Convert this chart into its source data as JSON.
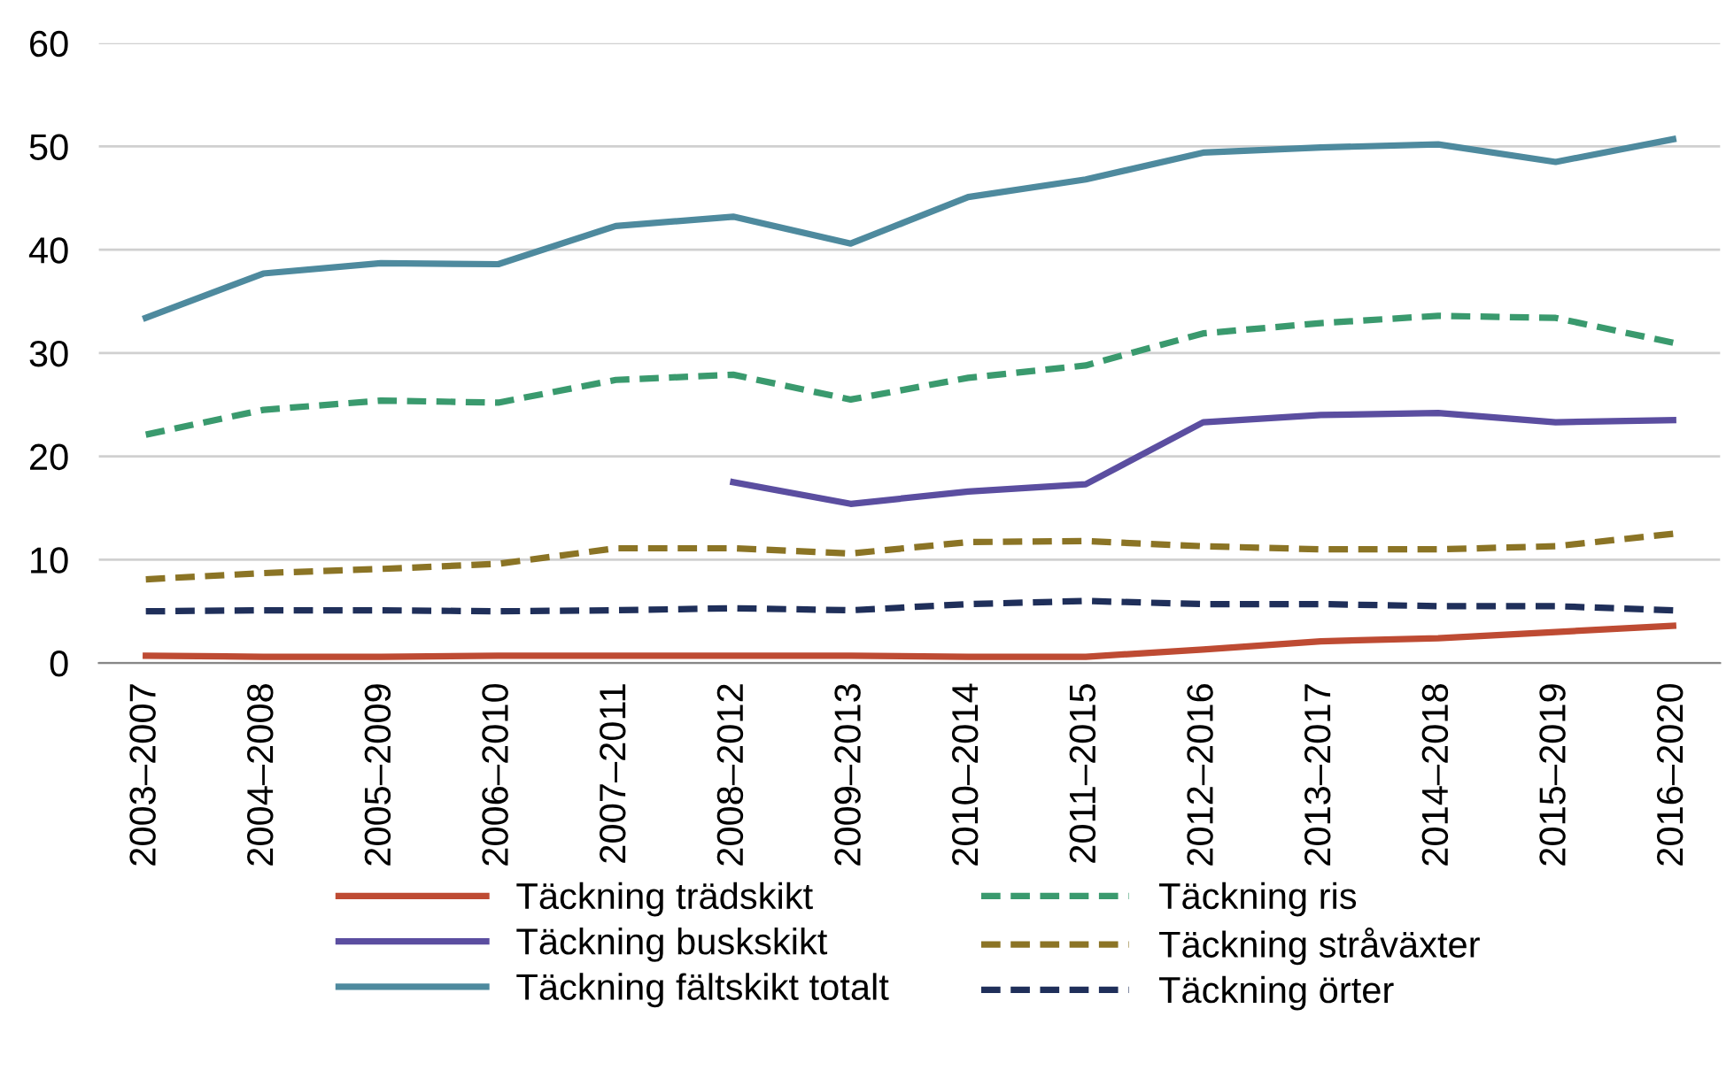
{
  "chart_data": {
    "type": "line",
    "categories": [
      "2003–2007",
      "2004–2008",
      "2005–2009",
      "2006–2010",
      "2007–2011",
      "2008–2012",
      "2009–2013",
      "2010–2014",
      "2011–2015",
      "2012–2016",
      "2013–2017",
      "2014–2018",
      "2015–2019",
      "2016–2020"
    ],
    "series": [
      {
        "name": "Täckning trädskikt",
        "color": "#be4b33",
        "line_style": "solid",
        "values": [
          0.7,
          0.6,
          0.6,
          0.7,
          0.7,
          0.7,
          0.7,
          0.6,
          0.6,
          1.3,
          2.1,
          2.4,
          3.0,
          3.6
        ]
      },
      {
        "name": "Täckning buskskikt",
        "color": "#5b4ea0",
        "line_style": "solid",
        "values": [
          null,
          null,
          null,
          null,
          null,
          17.5,
          15.4,
          16.6,
          17.3,
          23.3,
          24.0,
          24.2,
          23.3,
          23.5
        ]
      },
      {
        "name": "Täckning fältskikt totalt",
        "color": "#4e8a9e",
        "line_style": "solid",
        "values": [
          33.4,
          37.7,
          38.7,
          38.6,
          42.3,
          43.2,
          40.6,
          45.1,
          46.8,
          49.4,
          49.9,
          50.2,
          48.5,
          50.7
        ]
      },
      {
        "name": "Täckning ris",
        "color": "#3a9a6e",
        "line_style": "dashed",
        "values": [
          22.1,
          24.5,
          25.4,
          25.2,
          27.4,
          27.9,
          25.5,
          27.6,
          28.8,
          31.9,
          32.9,
          33.6,
          33.4,
          31.0
        ]
      },
      {
        "name": "Täckning stråväxter",
        "color": "#8b7425",
        "line_style": "dashed",
        "values": [
          8.1,
          8.7,
          9.1,
          9.6,
          11.1,
          11.1,
          10.6,
          11.7,
          11.8,
          11.3,
          11.0,
          11.0,
          11.3,
          12.5
        ]
      },
      {
        "name": "Täckning örter",
        "color": "#1f2f5a",
        "line_style": "dashed",
        "values": [
          5.0,
          5.1,
          5.1,
          5.0,
          5.1,
          5.3,
          5.1,
          5.7,
          6.0,
          5.7,
          5.7,
          5.5,
          5.5,
          5.1
        ]
      }
    ],
    "ylim": [
      0,
      60
    ],
    "yticks": [
      0,
      10,
      20,
      30,
      40,
      50,
      60
    ],
    "grid": "y",
    "legend": "bottom",
    "marker": "none"
  }
}
